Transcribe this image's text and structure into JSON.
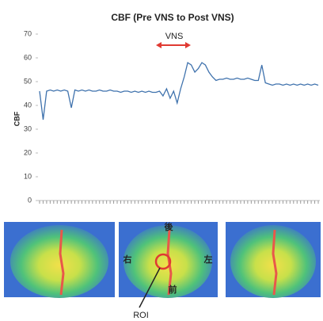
{
  "chart_data": {
    "type": "line",
    "title": "CBF (Pre VNS to Post VNS)",
    "y_label": "CBF",
    "ylim": [
      0,
      70
    ],
    "yticks": [
      0,
      10,
      20,
      30,
      40,
      50,
      60,
      70
    ],
    "color": "#3f72ad",
    "annotation": "VNS",
    "annotation_color": "#e03a32",
    "values": [
      46,
      34,
      46,
      46.5,
      46,
      46.5,
      46,
      46.5,
      46,
      39,
      46.5,
      46,
      46.5,
      46,
      46.5,
      46,
      46,
      46.5,
      46,
      46,
      46.5,
      46,
      46,
      45.5,
      46,
      46,
      45.5,
      46,
      45.5,
      46,
      45.5,
      46,
      45.5,
      45.5,
      46,
      44,
      47,
      43,
      46,
      41,
      47,
      52,
      58,
      57,
      54,
      55.5,
      58,
      57,
      54,
      52,
      50.5,
      51,
      51,
      51.5,
      51,
      51,
      51.5,
      51,
      51,
      51.5,
      51,
      50.5,
      50.5,
      57,
      49.5,
      49,
      48.5,
      49,
      49,
      48.5,
      49,
      48.5,
      49,
      48.5,
      49,
      48.5,
      49,
      48.5,
      49,
      48.5
    ]
  },
  "figure": {
    "labels": [
      "後",
      "右",
      "左",
      "前"
    ],
    "roi_label": "ROI"
  }
}
